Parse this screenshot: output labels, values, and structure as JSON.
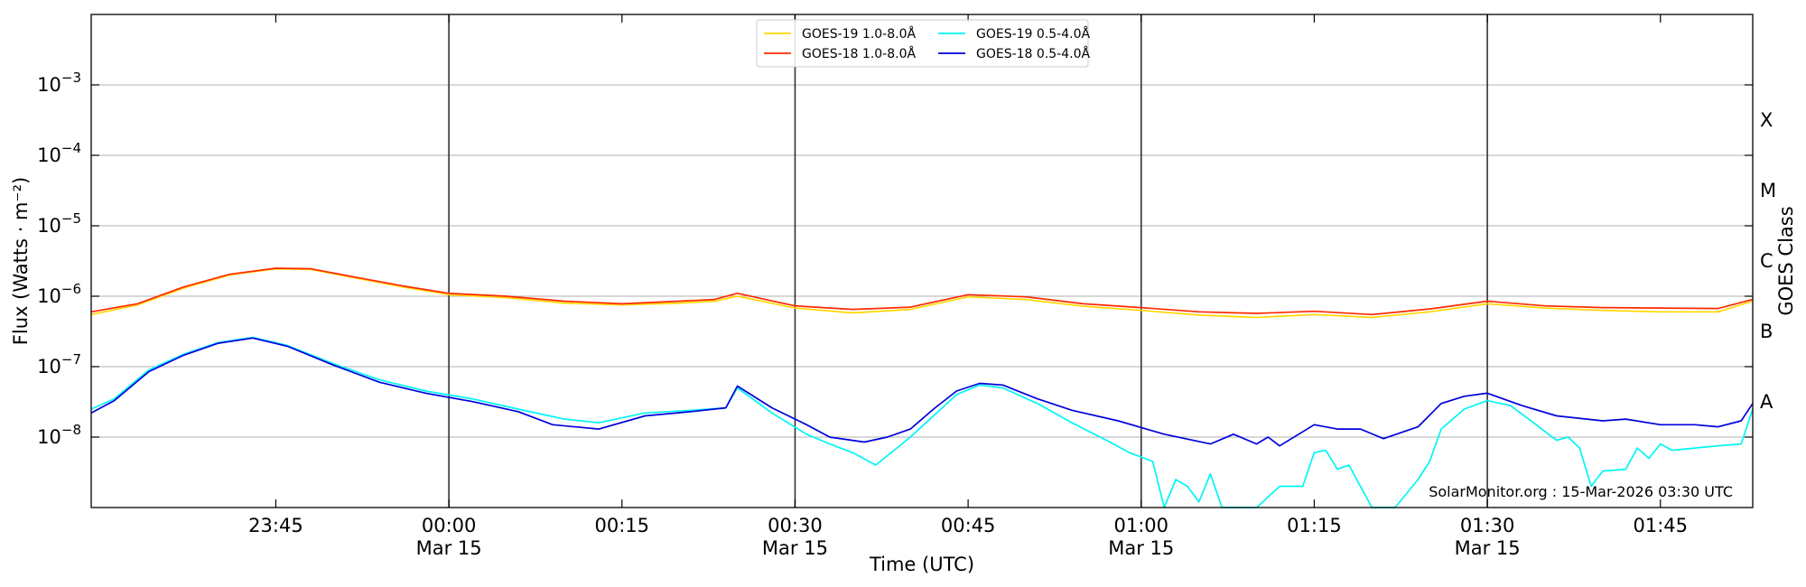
{
  "chart_data": {
    "type": "line",
    "xlabel": "Time (UTC)",
    "ylabel": "Flux (Watts · m⁻²)",
    "y2label": "GOES Class",
    "yscale": "log",
    "ylim": [
      1e-09,
      0.01
    ],
    "xlim": [
      "2026-03-14 23:29",
      "2026-03-15 01:53"
    ],
    "grid": "horizontal at each decade",
    "legend_position": "top-center",
    "yticks": [
      {
        "exp": -8,
        "label": "10",
        "sup": "−8"
      },
      {
        "exp": -7,
        "label": "10",
        "sup": "−7"
      },
      {
        "exp": -6,
        "label": "10",
        "sup": "−6"
      },
      {
        "exp": -5,
        "label": "10",
        "sup": "−5"
      },
      {
        "exp": -4,
        "label": "10",
        "sup": "−4"
      },
      {
        "exp": -3,
        "label": "10",
        "sup": "−3"
      }
    ],
    "xticks": [
      {
        "t": "2026-03-14 23:45",
        "label": "23:45",
        "date": ""
      },
      {
        "t": "2026-03-15 00:00",
        "label": "00:00",
        "date": "Mar 15"
      },
      {
        "t": "2026-03-15 00:15",
        "label": "00:15",
        "date": ""
      },
      {
        "t": "2026-03-15 00:30",
        "label": "00:30",
        "date": "Mar 15"
      },
      {
        "t": "2026-03-15 00:45",
        "label": "00:45",
        "date": ""
      },
      {
        "t": "2026-03-15 01:00",
        "label": "01:00",
        "date": "Mar 15"
      },
      {
        "t": "2026-03-15 01:15",
        "label": "01:15",
        "date": ""
      },
      {
        "t": "2026-03-15 01:30",
        "label": "01:30",
        "date": "Mar 15"
      },
      {
        "t": "2026-03-15 01:45",
        "label": "01:45",
        "date": ""
      }
    ],
    "vlines": [
      "2026-03-15 00:00",
      "2026-03-15 00:30",
      "2026-03-15 01:00",
      "2026-03-15 01:30"
    ],
    "goes_classes": [
      {
        "label": "A",
        "exp": -7.5
      },
      {
        "label": "B",
        "exp": -6.5
      },
      {
        "label": "C",
        "exp": -5.5
      },
      {
        "label": "M",
        "exp": -4.5
      },
      {
        "label": "X",
        "exp": -3.5
      }
    ],
    "annotation": "SolarMonitor.org : 15-Mar-2026 03:30 UTC",
    "series": [
      {
        "name": "GOES-19 1.0-8.0Å",
        "color": "#ffd700",
        "points": [
          [
            "2026-03-14 23:29",
            5.5e-07
          ],
          [
            "2026-03-14 23:33",
            7.5e-07
          ],
          [
            "2026-03-14 23:37",
            1.3e-06
          ],
          [
            "2026-03-14 23:41",
            2e-06
          ],
          [
            "2026-03-14 23:45",
            2.45e-06
          ],
          [
            "2026-03-14 23:48",
            2.4e-06
          ],
          [
            "2026-03-14 23:52",
            1.8e-06
          ],
          [
            "2026-03-14 23:56",
            1.35e-06
          ],
          [
            "2026-03-15 00:00",
            1.05e-06
          ],
          [
            "2026-03-15 00:05",
            9.5e-07
          ],
          [
            "2026-03-15 00:10",
            8e-07
          ],
          [
            "2026-03-15 00:15",
            7.5e-07
          ],
          [
            "2026-03-15 00:20",
            8e-07
          ],
          [
            "2026-03-15 00:23",
            8.5e-07
          ],
          [
            "2026-03-15 00:25",
            1e-06
          ],
          [
            "2026-03-15 00:30",
            6.8e-07
          ],
          [
            "2026-03-15 00:35",
            5.8e-07
          ],
          [
            "2026-03-15 00:40",
            6.5e-07
          ],
          [
            "2026-03-15 00:45",
            9.8e-07
          ],
          [
            "2026-03-15 00:50",
            9e-07
          ],
          [
            "2026-03-15 00:55",
            7.2e-07
          ],
          [
            "2026-03-15 01:00",
            6.3e-07
          ],
          [
            "2026-03-15 01:05",
            5.4e-07
          ],
          [
            "2026-03-15 01:10",
            5e-07
          ],
          [
            "2026-03-15 01:15",
            5.5e-07
          ],
          [
            "2026-03-15 01:20",
            5e-07
          ],
          [
            "2026-03-15 01:25",
            6e-07
          ],
          [
            "2026-03-15 01:30",
            7.8e-07
          ],
          [
            "2026-03-15 01:35",
            6.8e-07
          ],
          [
            "2026-03-15 01:40",
            6.3e-07
          ],
          [
            "2026-03-15 01:45",
            6e-07
          ],
          [
            "2026-03-15 01:50",
            6e-07
          ],
          [
            "2026-03-15 01:53",
            8.5e-07
          ]
        ]
      },
      {
        "name": "GOES-18 1.0-8.0Å",
        "color": "#ff2a00",
        "points": [
          [
            "2026-03-14 23:29",
            6e-07
          ],
          [
            "2026-03-14 23:33",
            7.8e-07
          ],
          [
            "2026-03-14 23:37",
            1.35e-06
          ],
          [
            "2026-03-14 23:41",
            2.05e-06
          ],
          [
            "2026-03-14 23:45",
            2.5e-06
          ],
          [
            "2026-03-14 23:48",
            2.45e-06
          ],
          [
            "2026-03-14 23:52",
            1.85e-06
          ],
          [
            "2026-03-14 23:56",
            1.4e-06
          ],
          [
            "2026-03-15 00:00",
            1.1e-06
          ],
          [
            "2026-03-15 00:05",
            1e-06
          ],
          [
            "2026-03-15 00:10",
            8.5e-07
          ],
          [
            "2026-03-15 00:15",
            7.8e-07
          ],
          [
            "2026-03-15 00:20",
            8.5e-07
          ],
          [
            "2026-03-15 00:23",
            9e-07
          ],
          [
            "2026-03-15 00:25",
            1.1e-06
          ],
          [
            "2026-03-15 00:30",
            7.3e-07
          ],
          [
            "2026-03-15 00:35",
            6.5e-07
          ],
          [
            "2026-03-15 00:40",
            7e-07
          ],
          [
            "2026-03-15 00:45",
            1.05e-06
          ],
          [
            "2026-03-15 00:50",
            9.8e-07
          ],
          [
            "2026-03-15 00:55",
            7.8e-07
          ],
          [
            "2026-03-15 01:00",
            6.9e-07
          ],
          [
            "2026-03-15 01:05",
            6e-07
          ],
          [
            "2026-03-15 01:10",
            5.7e-07
          ],
          [
            "2026-03-15 01:15",
            6.1e-07
          ],
          [
            "2026-03-15 01:20",
            5.5e-07
          ],
          [
            "2026-03-15 01:25",
            6.6e-07
          ],
          [
            "2026-03-15 01:30",
            8.5e-07
          ],
          [
            "2026-03-15 01:35",
            7.3e-07
          ],
          [
            "2026-03-15 01:40",
            6.9e-07
          ],
          [
            "2026-03-15 01:45",
            6.8e-07
          ],
          [
            "2026-03-15 01:50",
            6.7e-07
          ],
          [
            "2026-03-15 01:53",
            9e-07
          ]
        ]
      },
      {
        "name": "GOES-19 0.5-4.0Å",
        "color": "#00f5f5",
        "points": [
          [
            "2026-03-14 23:29",
            2.5e-08
          ],
          [
            "2026-03-14 23:31",
            3.5e-08
          ],
          [
            "2026-03-14 23:34",
            9e-08
          ],
          [
            "2026-03-14 23:37",
            1.5e-07
          ],
          [
            "2026-03-14 23:40",
            2.2e-07
          ],
          [
            "2026-03-14 23:43",
            2.6e-07
          ],
          [
            "2026-03-14 23:46",
            2e-07
          ],
          [
            "2026-03-14 23:50",
            1.1e-07
          ],
          [
            "2026-03-14 23:54",
            6.5e-08
          ],
          [
            "2026-03-14 23:58",
            4.5e-08
          ],
          [
            "2026-03-15 00:02",
            3.5e-08
          ],
          [
            "2026-03-15 00:06",
            2.5e-08
          ],
          [
            "2026-03-15 00:10",
            1.8e-08
          ],
          [
            "2026-03-15 00:13",
            1.6e-08
          ],
          [
            "2026-03-15 00:17",
            2.2e-08
          ],
          [
            "2026-03-15 00:21",
            2.4e-08
          ],
          [
            "2026-03-15 00:24",
            2.6e-08
          ],
          [
            "2026-03-15 00:25",
            5e-08
          ],
          [
            "2026-03-15 00:28",
            2.2e-08
          ],
          [
            "2026-03-15 00:31",
            1.1e-08
          ],
          [
            "2026-03-15 00:33",
            8e-09
          ],
          [
            "2026-03-15 00:35",
            6e-09
          ],
          [
            "2026-03-15 00:37",
            4e-09
          ],
          [
            "2026-03-15 00:40",
            1e-08
          ],
          [
            "2026-03-15 00:42",
            2e-08
          ],
          [
            "2026-03-15 00:44",
            4e-08
          ],
          [
            "2026-03-15 00:46",
            5.5e-08
          ],
          [
            "2026-03-15 00:48",
            5e-08
          ],
          [
            "2026-03-15 00:51",
            3e-08
          ],
          [
            "2026-03-15 00:54",
            1.6e-08
          ],
          [
            "2026-03-15 00:57",
            9e-09
          ],
          [
            "2026-03-15 00:59",
            6e-09
          ],
          [
            "2026-03-15 01:01",
            4.5e-09
          ],
          [
            "2026-03-15 01:02",
            1e-09
          ],
          [
            "2026-03-15 01:03",
            2.5e-09
          ],
          [
            "2026-03-15 01:04",
            2e-09
          ],
          [
            "2026-03-15 01:05",
            1.2e-09
          ],
          [
            "2026-03-15 01:06",
            3e-09
          ],
          [
            "2026-03-15 01:07",
            1e-09
          ],
          [
            "2026-03-15 01:10",
            1e-09
          ],
          [
            "2026-03-15 01:12",
            2e-09
          ],
          [
            "2026-03-15 01:14",
            2e-09
          ],
          [
            "2026-03-15 01:15",
            6e-09
          ],
          [
            "2026-03-15 01:16",
            6.5e-09
          ],
          [
            "2026-03-15 01:17",
            3.5e-09
          ],
          [
            "2026-03-15 01:18",
            4e-09
          ],
          [
            "2026-03-15 01:20",
            1e-09
          ],
          [
            "2026-03-15 01:22",
            1e-09
          ],
          [
            "2026-03-15 01:24",
            2.5e-09
          ],
          [
            "2026-03-15 01:25",
            4.5e-09
          ],
          [
            "2026-03-15 01:26",
            1.3e-08
          ],
          [
            "2026-03-15 01:28",
            2.5e-08
          ],
          [
            "2026-03-15 01:30",
            3.3e-08
          ],
          [
            "2026-03-15 01:32",
            2.8e-08
          ],
          [
            "2026-03-15 01:34",
            1.6e-08
          ],
          [
            "2026-03-15 01:36",
            9e-09
          ],
          [
            "2026-03-15 01:37",
            1e-08
          ],
          [
            "2026-03-15 01:38",
            7e-09
          ],
          [
            "2026-03-15 01:39",
            2e-09
          ],
          [
            "2026-03-15 01:40",
            3.3e-09
          ],
          [
            "2026-03-15 01:42",
            3.5e-09
          ],
          [
            "2026-03-15 01:43",
            7e-09
          ],
          [
            "2026-03-15 01:44",
            5e-09
          ],
          [
            "2026-03-15 01:45",
            8e-09
          ],
          [
            "2026-03-15 01:46",
            6.5e-09
          ],
          [
            "2026-03-15 01:48",
            7e-09
          ],
          [
            "2026-03-15 01:50",
            7.5e-09
          ],
          [
            "2026-03-15 01:52",
            8e-09
          ],
          [
            "2026-03-15 01:53",
            2.5e-08
          ]
        ]
      },
      {
        "name": "GOES-18 0.5-4.0Å",
        "color": "#0000dd",
        "points": [
          [
            "2026-03-14 23:29",
            2.2e-08
          ],
          [
            "2026-03-14 23:31",
            3.3e-08
          ],
          [
            "2026-03-14 23:34",
            8.5e-08
          ],
          [
            "2026-03-14 23:37",
            1.45e-07
          ],
          [
            "2026-03-14 23:40",
            2.15e-07
          ],
          [
            "2026-03-14 23:43",
            2.55e-07
          ],
          [
            "2026-03-14 23:46",
            1.95e-07
          ],
          [
            "2026-03-14 23:50",
            1.05e-07
          ],
          [
            "2026-03-14 23:54",
            6e-08
          ],
          [
            "2026-03-14 23:58",
            4.2e-08
          ],
          [
            "2026-03-15 00:02",
            3.2e-08
          ],
          [
            "2026-03-15 00:06",
            2.3e-08
          ],
          [
            "2026-03-15 00:09",
            1.5e-08
          ],
          [
            "2026-03-15 00:13",
            1.3e-08
          ],
          [
            "2026-03-15 00:17",
            2e-08
          ],
          [
            "2026-03-15 00:21",
            2.3e-08
          ],
          [
            "2026-03-15 00:24",
            2.6e-08
          ],
          [
            "2026-03-15 00:25",
            5.3e-08
          ],
          [
            "2026-03-15 00:28",
            2.6e-08
          ],
          [
            "2026-03-15 00:31",
            1.5e-08
          ],
          [
            "2026-03-15 00:33",
            1e-08
          ],
          [
            "2026-03-15 00:36",
            8.5e-09
          ],
          [
            "2026-03-15 00:38",
            1e-08
          ],
          [
            "2026-03-15 00:40",
            1.3e-08
          ],
          [
            "2026-03-15 00:42",
            2.5e-08
          ],
          [
            "2026-03-15 00:44",
            4.5e-08
          ],
          [
            "2026-03-15 00:46",
            5.8e-08
          ],
          [
            "2026-03-15 00:48",
            5.5e-08
          ],
          [
            "2026-03-15 00:51",
            3.5e-08
          ],
          [
            "2026-03-15 00:54",
            2.4e-08
          ],
          [
            "2026-03-15 00:58",
            1.7e-08
          ],
          [
            "2026-03-15 01:02",
            1.1e-08
          ],
          [
            "2026-03-15 01:06",
            8e-09
          ],
          [
            "2026-03-15 01:08",
            1.1e-08
          ],
          [
            "2026-03-15 01:10",
            8e-09
          ],
          [
            "2026-03-15 01:11",
            1e-08
          ],
          [
            "2026-03-15 01:12",
            7.5e-09
          ],
          [
            "2026-03-15 01:15",
            1.5e-08
          ],
          [
            "2026-03-15 01:17",
            1.3e-08
          ],
          [
            "2026-03-15 01:19",
            1.3e-08
          ],
          [
            "2026-03-15 01:21",
            9.5e-09
          ],
          [
            "2026-03-15 01:24",
            1.4e-08
          ],
          [
            "2026-03-15 01:26",
            3e-08
          ],
          [
            "2026-03-15 01:28",
            3.8e-08
          ],
          [
            "2026-03-15 01:30",
            4.2e-08
          ],
          [
            "2026-03-15 01:33",
            2.8e-08
          ],
          [
            "2026-03-15 01:36",
            2e-08
          ],
          [
            "2026-03-15 01:40",
            1.7e-08
          ],
          [
            "2026-03-15 01:42",
            1.8e-08
          ],
          [
            "2026-03-15 01:45",
            1.5e-08
          ],
          [
            "2026-03-15 01:48",
            1.5e-08
          ],
          [
            "2026-03-15 01:50",
            1.4e-08
          ],
          [
            "2026-03-15 01:52",
            1.7e-08
          ],
          [
            "2026-03-15 01:53",
            3e-08
          ]
        ]
      }
    ]
  }
}
